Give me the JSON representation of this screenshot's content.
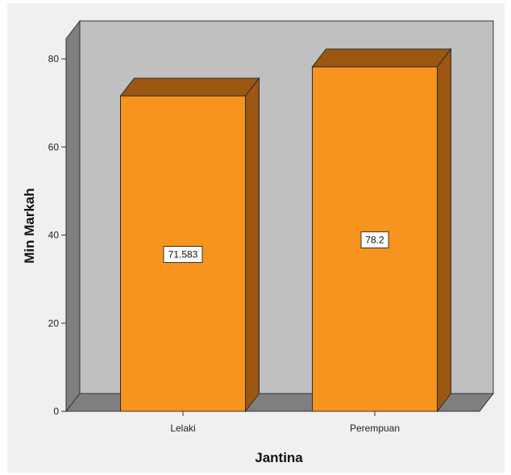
{
  "chart_data": {
    "type": "bar",
    "categories": [
      "Lelaki",
      "Perempuan"
    ],
    "values": [
      71.583,
      78.2
    ],
    "data_labels": [
      "71.583",
      "78.2"
    ],
    "title": "",
    "xlabel": "Jantina",
    "ylabel": "Min Markah",
    "ylim": [
      0,
      80
    ],
    "yticks": [
      0,
      20,
      40,
      60,
      80
    ],
    "grid": false,
    "style": "3d",
    "colors": {
      "bar_front": "#f7941d",
      "bar_top": "#9c5713",
      "bar_side": "#9c5713",
      "back_wall": "#c0c0c0",
      "side_wall": "#7f7f7f",
      "floor": "#7f7f7f",
      "frame_bg": "#f0f0f0"
    }
  }
}
